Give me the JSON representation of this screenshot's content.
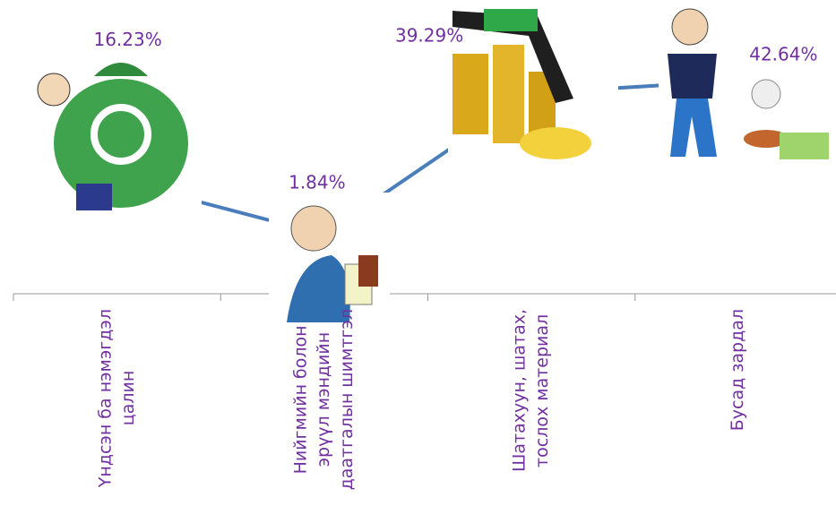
{
  "chart_data": {
    "type": "line",
    "categories": [
      "Үндсэн ба нэмэгдэл\nцалин",
      "Нийгмийн болон\nэрүүл мэндийн\nдаатгалын шимтгэл",
      "Шатахуун, шатах,\nтослох материал",
      "Бусад зардал"
    ],
    "values": [
      16.23,
      1.84,
      39.29,
      42.64
    ],
    "value_labels": [
      "16.23%",
      "1.84%",
      "39.29%",
      "42.64%"
    ],
    "color": "#4a7ebb"
  }
}
